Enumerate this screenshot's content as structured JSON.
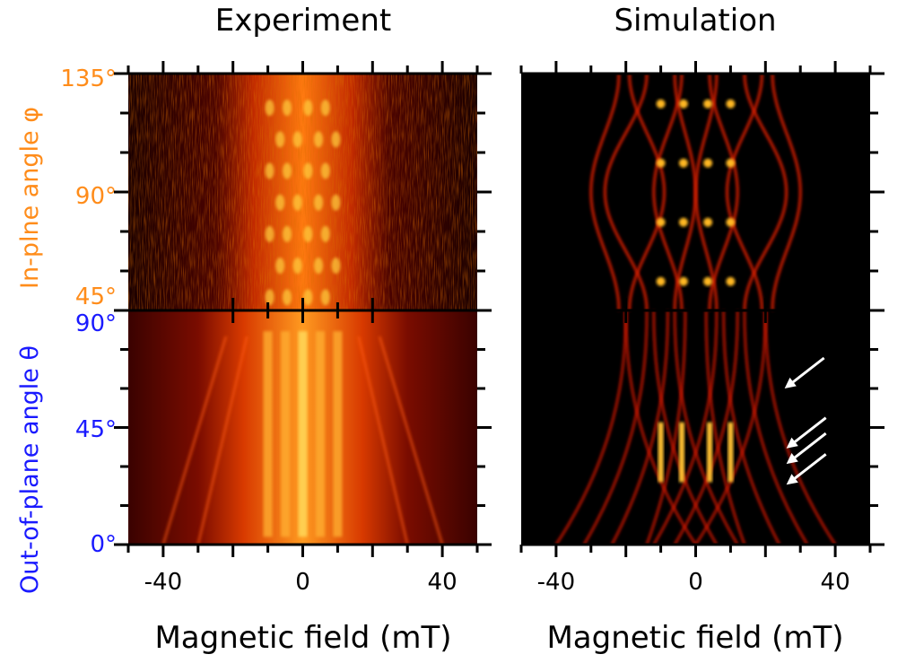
{
  "colors": {
    "in_plane": "#ff8c1a",
    "out_of_plane": "#1a1aff",
    "axis": "#000000",
    "arrow": "#ffffff"
  },
  "labels": {
    "ylabel_out_of_plane": "Out-of-plane angle θ",
    "ylabel_in_plane": "In-plne angle φ"
  },
  "chart_data": [
    {
      "type": "heatmap",
      "title": "Experiment",
      "xlabel": "Magnetic field (mT)",
      "xlim": [
        -50,
        50
      ],
      "xticks": [
        -40,
        0,
        40
      ],
      "xtick_labels": [
        "-40",
        "0",
        "40"
      ],
      "colormap": "hot",
      "sections": [
        {
          "variable": "φ",
          "ylim": [
            45,
            135
          ],
          "yticks": [
            45,
            90,
            135
          ],
          "ytick_labels": [
            "45°",
            "90°",
            "135°"
          ]
        },
        {
          "variable": "θ",
          "ylim": [
            0,
            90
          ],
          "yticks": [
            0,
            45,
            90
          ],
          "ytick_labels": [
            "0°",
            "45°",
            "90°"
          ]
        }
      ]
    },
    {
      "type": "heatmap",
      "title": "Simulation",
      "xlabel": "Magnetic field (mT)",
      "xlim": [
        -50,
        50
      ],
      "xticks": [
        -40,
        0,
        40
      ],
      "xtick_labels": [
        "-40",
        "0",
        "40"
      ],
      "colormap": "hot",
      "sections": [
        {
          "variable": "φ",
          "ylim": [
            45,
            135
          ]
        },
        {
          "variable": "θ",
          "ylim": [
            0,
            90
          ]
        }
      ],
      "annotations": [
        {
          "type": "arrow",
          "color": "white",
          "points_to_theta": 60
        },
        {
          "type": "arrow",
          "color": "white",
          "points_to_theta": 37
        },
        {
          "type": "arrow",
          "color": "white",
          "points_to_theta": 31
        },
        {
          "type": "arrow",
          "color": "white",
          "points_to_theta": 23
        }
      ]
    }
  ]
}
